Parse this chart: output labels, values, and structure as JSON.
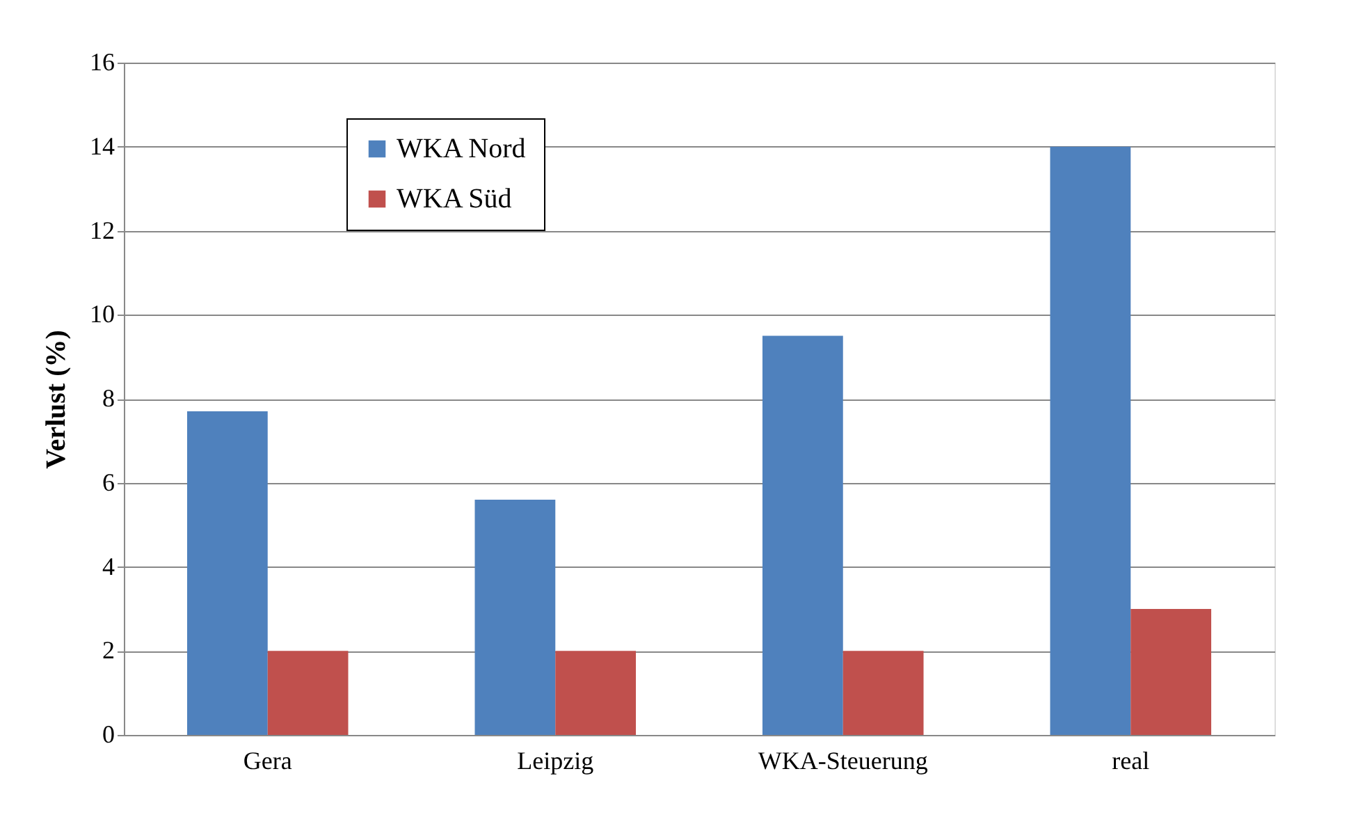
{
  "chart_data": {
    "type": "bar",
    "ylabel": "Verlust  (%)",
    "categories": [
      "Gera",
      "Leipzig",
      "WKA-Steuerung",
      "real"
    ],
    "series": [
      {
        "name": "WKA Nord",
        "color": "#4f81bd",
        "values": [
          7.7,
          5.6,
          9.5,
          14
        ]
      },
      {
        "name": "WKA Süd",
        "color": "#c0504d",
        "values": [
          2,
          2,
          2,
          3
        ]
      }
    ],
    "ylim": [
      0,
      16
    ],
    "yticks": [
      0,
      2,
      4,
      6,
      8,
      10,
      12,
      14,
      16
    ],
    "grid": "y",
    "legend": "top left"
  }
}
